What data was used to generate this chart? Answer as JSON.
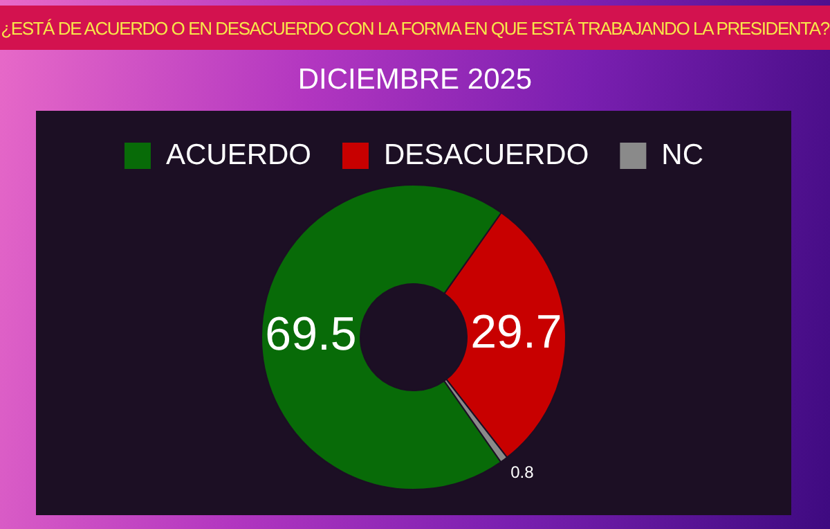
{
  "chart_data": {
    "type": "donut",
    "title": "¿ESTÁ DE ACUERDO O EN DESACUERDO CON LA FORMA EN QUE ESTÁ TRABAJANDO LA PRESIDENTA?",
    "subtitle": "DICIEMBRE 2025",
    "categories": [
      "ACUERDO",
      "DESACUERDO",
      "NC"
    ],
    "values": [
      69.5,
      29.7,
      0.8
    ],
    "colors": [
      "#086b08",
      "#c80000",
      "#8a8a8a"
    ],
    "data_labels": true,
    "legend": "top"
  }
}
